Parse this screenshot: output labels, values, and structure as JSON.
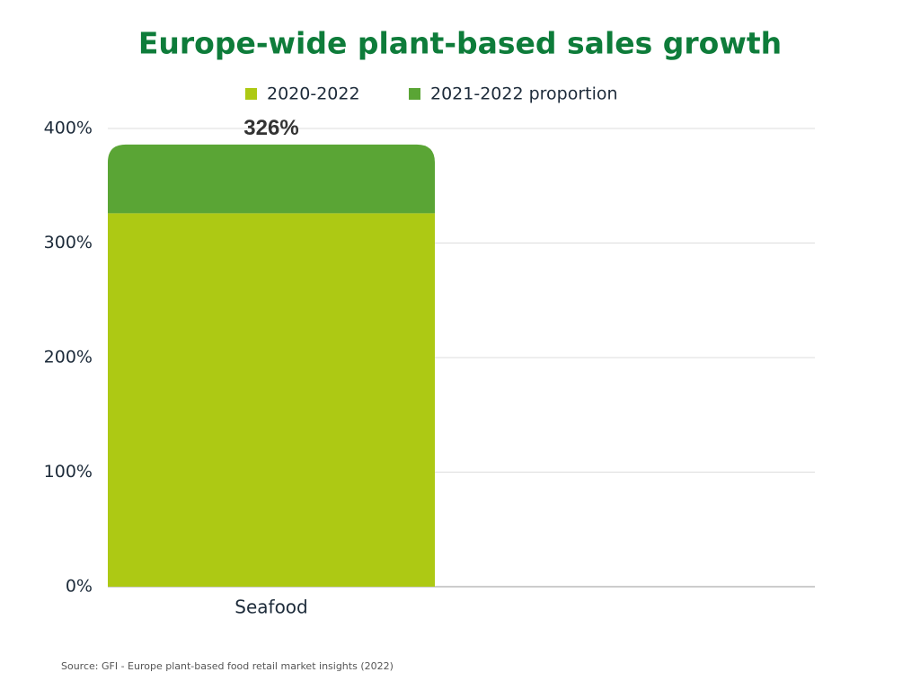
{
  "chart_data": {
    "type": "stacked_bar",
    "title": "Europe-wide plant-based sales growth",
    "categories": [
      "Seafood"
    ],
    "series": [
      {
        "name": "2020-2022",
        "color": "#adc914",
        "values": [
          326
        ],
        "value_labels": [
          "326%"
        ]
      },
      {
        "name": "2021-2022 proportion",
        "color": "#5aa535",
        "values": [
          60
        ]
      }
    ],
    "ylim": [
      0,
      400
    ],
    "yticks": [
      {
        "value": 0,
        "label": "0%"
      },
      {
        "value": 100,
        "label": "100%"
      },
      {
        "value": 200,
        "label": "200%"
      },
      {
        "value": 300,
        "label": "300%"
      },
      {
        "value": 400,
        "label": "400%"
      }
    ],
    "grid": true,
    "legend": "top",
    "source": "Source: GFI - Europe plant-based food retail market insights (2022)"
  }
}
